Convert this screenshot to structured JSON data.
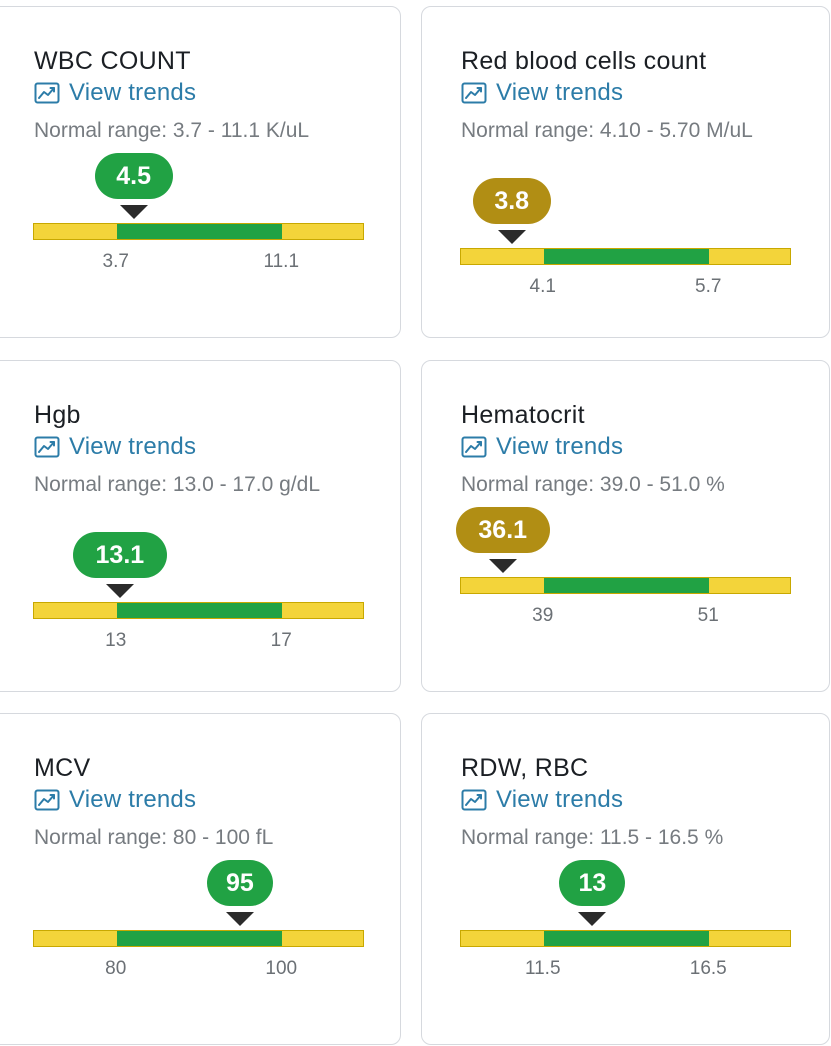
{
  "colors": {
    "in_range": "#21a244",
    "out_of_range": "#b18e14",
    "normal_band": "#21a244",
    "outside_band": "#f3d43a",
    "link": "#2c7ca8"
  },
  "cards": [
    {
      "title": "WBC COUNT",
      "trend_label": "View trends",
      "trend_icon": "line-chart-icon",
      "range_text": "Normal range: 3.7 - 11.1 K/uL",
      "value_label": "4.5",
      "value": 4.5,
      "low": 3.7,
      "high": 11.1,
      "low_label": "3.7",
      "high_label": "11.1",
      "status": "in"
    },
    {
      "title": "Red blood cells count",
      "trend_label": "View trends",
      "trend_icon": "line-chart-icon",
      "range_text": "Normal range: 4.10 - 5.70 M/uL",
      "value_label": "3.8",
      "value": 3.8,
      "low": 4.1,
      "high": 5.7,
      "low_label": "4.1",
      "high_label": "5.7",
      "status": "out"
    },
    {
      "title": "Hgb",
      "trend_label": "View trends",
      "trend_icon": "line-chart-icon",
      "range_text": "Normal range: 13.0 - 17.0 g/dL",
      "value_label": "13.1",
      "value": 13.1,
      "low": 13,
      "high": 17,
      "low_label": "13",
      "high_label": "17",
      "status": "in"
    },
    {
      "title": "Hematocrit",
      "trend_label": "View trends",
      "trend_icon": "line-chart-icon",
      "range_text": "Normal range: 39.0 - 51.0 %",
      "value_label": "36.1",
      "value": 36.1,
      "low": 39,
      "high": 51,
      "low_label": "39",
      "high_label": "51",
      "status": "out"
    },
    {
      "title": "MCV",
      "trend_label": "View trends",
      "trend_icon": "line-chart-icon",
      "range_text": "Normal range: 80 - 100 fL",
      "value_label": "95",
      "value": 95,
      "low": 80,
      "high": 100,
      "low_label": "80",
      "high_label": "100",
      "status": "in"
    },
    {
      "title": "RDW, RBC",
      "trend_label": "View trends",
      "trend_icon": "line-chart-icon",
      "range_text": "Normal range: 11.5 - 16.5 %",
      "value_label": "13",
      "value": 13,
      "low": 11.5,
      "high": 16.5,
      "low_label": "11.5",
      "high_label": "16.5",
      "status": "in"
    }
  ]
}
